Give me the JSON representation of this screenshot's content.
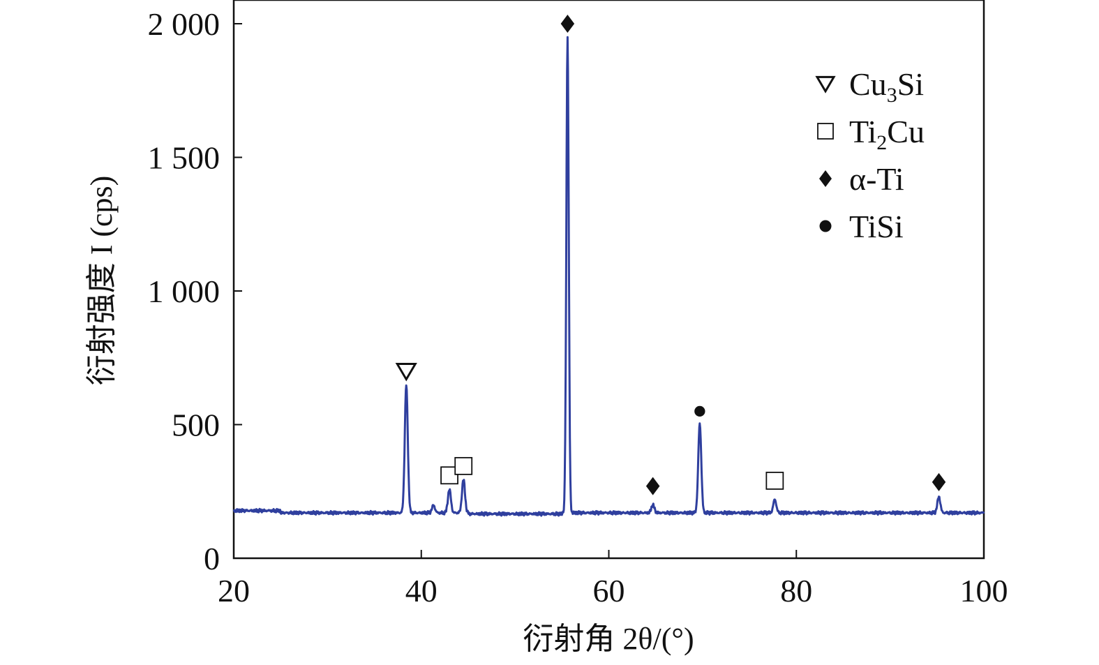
{
  "chart_data": {
    "type": "line",
    "xlabel": "衍射角 2θ/(°)",
    "ylabel": "衍射强度 I (cps)",
    "xlim": [
      20,
      100
    ],
    "ylim": [
      0,
      2100
    ],
    "xticks": [
      20,
      40,
      60,
      80,
      100
    ],
    "xtick_labels": [
      "20",
      "40",
      "60",
      "80",
      "100"
    ],
    "yticks": [
      0,
      500,
      1000,
      1500,
      2000
    ],
    "ytick_labels": [
      "0",
      "500",
      "1 000",
      "1 500",
      "2 000"
    ],
    "grid": false,
    "legend_position": "top-right",
    "series": [
      {
        "color": "#2f3f9e",
        "baseline": 170,
        "peaks": [
          {
            "x": 38.4,
            "y": 650
          },
          {
            "x": 41.3,
            "y": 198
          },
          {
            "x": 43.0,
            "y": 258
          },
          {
            "x": 44.5,
            "y": 295
          },
          {
            "x": 55.6,
            "y": 1950
          },
          {
            "x": 64.7,
            "y": 200
          },
          {
            "x": 69.7,
            "y": 505
          },
          {
            "x": 77.7,
            "y": 220
          },
          {
            "x": 95.2,
            "y": 230
          }
        ]
      }
    ],
    "legend": [
      {
        "marker": "triangle-down-open",
        "label": "Cu",
        "sub": "3",
        "label_after": "Si"
      },
      {
        "marker": "square-open",
        "label": "Ti",
        "sub": "2",
        "label_after": "Cu"
      },
      {
        "marker": "diamond-filled",
        "label": "α-Ti",
        "sub": "",
        "label_after": ""
      },
      {
        "marker": "circle-filled",
        "label": "TiSi",
        "sub": "",
        "label_after": ""
      }
    ],
    "annotations": [
      {
        "marker": "triangle-down-open",
        "x": 38.4,
        "y": 700
      },
      {
        "marker": "square-open",
        "x": 43.0,
        "y": 310
      },
      {
        "marker": "square-open",
        "x": 44.5,
        "y": 345
      },
      {
        "marker": "diamond-filled",
        "x": 55.6,
        "y": 2000
      },
      {
        "marker": "diamond-filled",
        "x": 64.7,
        "y": 270
      },
      {
        "marker": "circle-filled",
        "x": 69.7,
        "y": 550
      },
      {
        "marker": "square-open",
        "x": 77.7,
        "y": 290
      },
      {
        "marker": "diamond-filled",
        "x": 95.2,
        "y": 285
      }
    ]
  }
}
